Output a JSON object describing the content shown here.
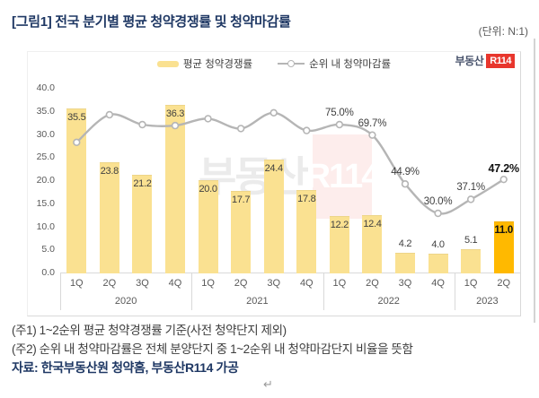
{
  "page": {
    "title": "[그림1] 전국 분기별 평균 청약경쟁률 및 청약마감률",
    "unit_label": "(단위: N:1)"
  },
  "logo": {
    "prefix": "부동산",
    "badge": "R114"
  },
  "watermark": {
    "prefix": "부동산",
    "badge": "R114"
  },
  "legend": {
    "bar_label": "평균 청약경쟁률",
    "line_label": "순위 내 청약마감률"
  },
  "footnotes": {
    "note1": "(주1) 1~2순위 평균 청약경쟁률 기준(사전 청약단지 제외)",
    "note2": "(주2) 순위 내 청약마감률은 전체 분양단지 중 1~2순위 내 청약마감단지 비율을 뜻함",
    "source": "자료: 한국부동산원 청약홈, 부동산R114 가공",
    "return_mark": "↵"
  },
  "chart_data": {
    "type": "combo_bar_line",
    "categories": [
      "1Q",
      "2Q",
      "3Q",
      "4Q",
      "1Q",
      "2Q",
      "3Q",
      "4Q",
      "1Q",
      "2Q",
      "3Q",
      "4Q",
      "1Q",
      "2Q"
    ],
    "year_groups": [
      {
        "label": "2020",
        "span": 4
      },
      {
        "label": "2021",
        "span": 4
      },
      {
        "label": "2022",
        "span": 4
      },
      {
        "label": "2023",
        "span": 2
      }
    ],
    "series": [
      {
        "name": "평균 청약경쟁률",
        "type": "bar",
        "axis": "left",
        "values": [
          35.5,
          23.8,
          21.2,
          36.3,
          20.0,
          17.7,
          24.4,
          17.8,
          12.2,
          12.4,
          4.2,
          4.0,
          5.1,
          11.0
        ],
        "value_labels": [
          "35.5",
          "23.8",
          "21.2",
          "36.3",
          "20.0",
          "17.7",
          "24.4",
          "17.8",
          "12.2",
          "12.4",
          "4.2",
          "4.0",
          "5.1",
          "11.0"
        ],
        "highlight_index": 13
      },
      {
        "name": "순위 내 청약마감률",
        "type": "line",
        "unit": "%",
        "values": [
          66.0,
          80.0,
          75.0,
          74.5,
          78.0,
          73.0,
          81.0,
          72.0,
          75.0,
          69.7,
          44.9,
          30.0,
          37.1,
          47.2
        ],
        "point_labels": [
          null,
          null,
          null,
          null,
          null,
          null,
          null,
          null,
          "75.0%",
          "69.7%",
          "44.9%",
          "30.0%",
          "37.1%",
          "47.2%"
        ],
        "estimated_indices": [
          0,
          1,
          2,
          3,
          4,
          5,
          6,
          7
        ],
        "bold_label_index": 13
      }
    ],
    "left_axis": {
      "min": 0,
      "max": 40,
      "ticks": [
        "0.0",
        "5.0",
        "10.0",
        "15.0",
        "20.0",
        "25.0",
        "30.0",
        "35.0",
        "40.0"
      ]
    },
    "grid": false,
    "legend_position": "top",
    "colors": {
      "bar": "#FAE191",
      "bar_highlight": "#FFB900",
      "line": "#B5B5B5",
      "marker_fill": "#FFFFFF",
      "title_navy": "#1F3864",
      "logo_red": "#E8362D",
      "axis_gray": "#D9D9D9"
    }
  }
}
